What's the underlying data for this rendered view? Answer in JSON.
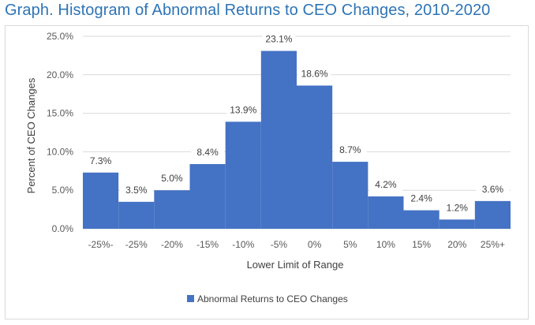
{
  "title": "Graph. Histogram of Abnormal Returns to CEO Changes, 2010-2020",
  "chart_data": {
    "type": "bar",
    "categories": [
      "-25%-",
      "-25%",
      "-20%",
      "-15%",
      "-10%",
      "-5%",
      "0%",
      "5%",
      "10%",
      "15%",
      "20%",
      "25%+"
    ],
    "series": [
      {
        "name": "Abnormal Returns to CEO Changes",
        "values": [
          7.3,
          3.5,
          5.0,
          8.4,
          13.9,
          23.1,
          18.6,
          8.7,
          4.2,
          2.4,
          1.2,
          3.6
        ],
        "labels": [
          "7.3%",
          "3.5%",
          "5.0%",
          "8.4%",
          "13.9%",
          "23.1%",
          "18.6%",
          "8.7%",
          "4.2%",
          "2.4%",
          "1.2%",
          "3.6%"
        ]
      }
    ],
    "yticks": [
      0,
      5,
      10,
      15,
      20,
      25
    ],
    "ytick_labels": [
      "0.0%",
      "5.0%",
      "10.0%",
      "15.0%",
      "20.0%",
      "25.0%"
    ],
    "ylim": [
      0,
      25
    ],
    "xlabel": "Lower Limit of Range",
    "ylabel": "Percent of CEO Changes",
    "grid": true,
    "legend_position": "bottom",
    "bar_color": "#4472c4",
    "grid_color": "#d9d9d9"
  }
}
